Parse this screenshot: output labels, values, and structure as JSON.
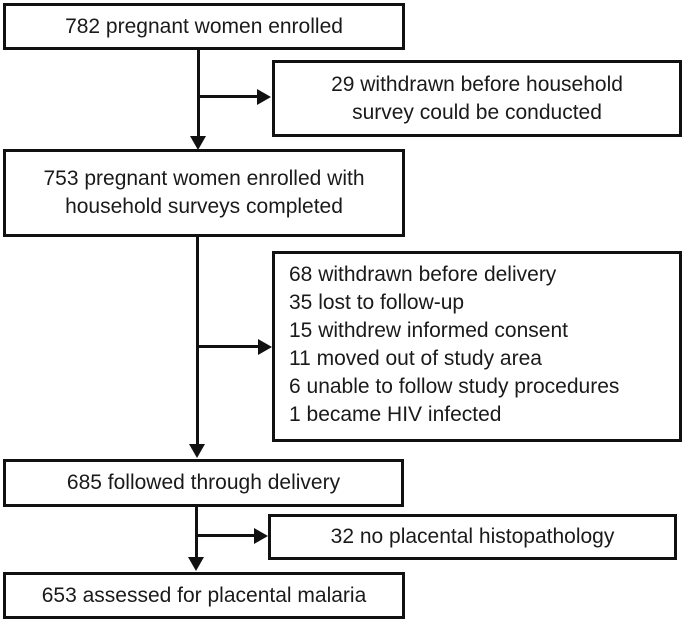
{
  "diagram": {
    "type": "flowchart",
    "colors": {
      "line": "#111111",
      "text": "#1a1a1a",
      "background": "#ffffff"
    },
    "boxes": {
      "enrolled": {
        "lines": [
          "782 pregnant women enrolled"
        ]
      },
      "withdrawn_before_survey": {
        "lines": [
          "29 withdrawn before household",
          "survey could be conducted"
        ]
      },
      "surveys_completed": {
        "lines": [
          "753 pregnant women enrolled with",
          "household surveys completed"
        ]
      },
      "withdrawn_before_delivery": {
        "lines": [
          "68 withdrawn before delivery",
          "35 lost to follow-up",
          "15 withdrew informed consent",
          "11 moved out of study area",
          "6 unable to follow study procedures",
          "1 became HIV infected"
        ]
      },
      "followed_delivery": {
        "lines": [
          "685 followed through delivery"
        ]
      },
      "no_histopathology": {
        "lines": [
          "32 no placental histopathology"
        ]
      },
      "assessed_malaria": {
        "lines": [
          "653 assessed for placental malaria"
        ]
      }
    }
  }
}
